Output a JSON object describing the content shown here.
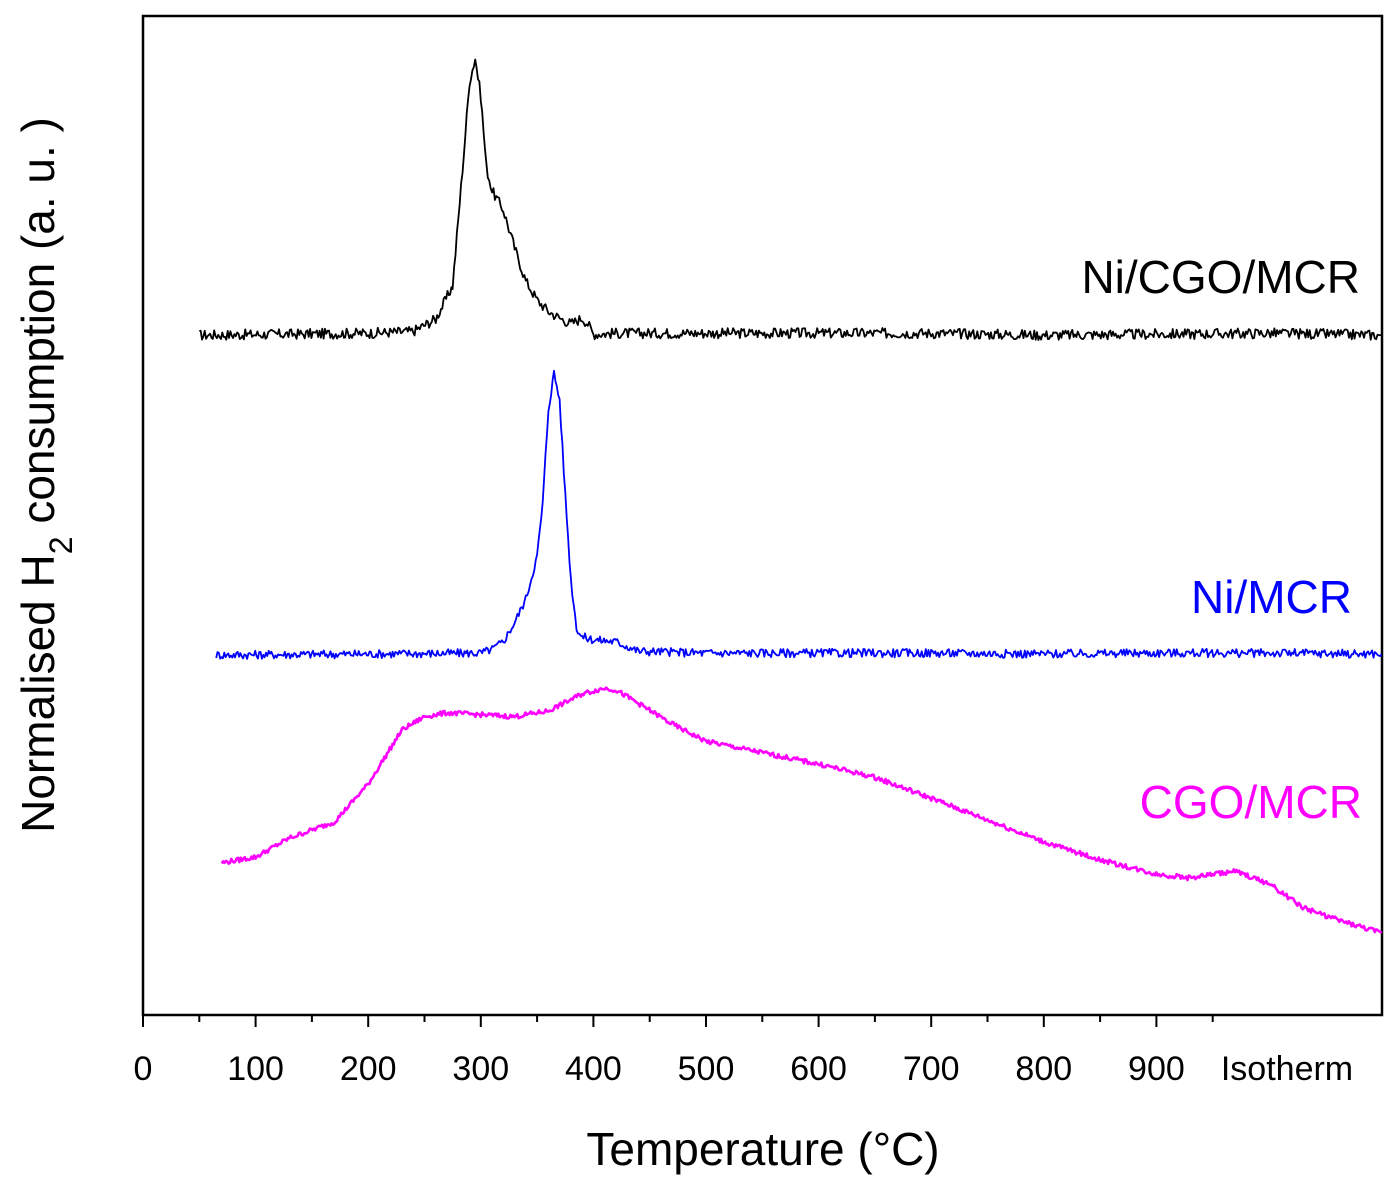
{
  "chart_data": {
    "type": "line",
    "title": "",
    "xlabel": "Temperature (°C)",
    "ylabel_main": "Normalised H",
    "ylabel_sub": "2",
    "ylabel_rest": " consumption (a. u. )",
    "xlim": [
      0,
      1100
    ],
    "ylim": [
      0,
      100
    ],
    "x_ticks": [
      {
        "value": 0,
        "label": "0"
      },
      {
        "value": 100,
        "label": "100"
      },
      {
        "value": 200,
        "label": "200"
      },
      {
        "value": 300,
        "label": "300"
      },
      {
        "value": 400,
        "label": "400"
      },
      {
        "value": 500,
        "label": "500"
      },
      {
        "value": 600,
        "label": "600"
      },
      {
        "value": 700,
        "label": "700"
      },
      {
        "value": 800,
        "label": "800"
      },
      {
        "value": 900,
        "label": "900"
      },
      {
        "value": 1000,
        "label": "Isotherm"
      }
    ],
    "series": [
      {
        "name": "Ni/CGO/MCR",
        "color": "#000000",
        "x": [
          50,
          200,
          240,
          260,
          275,
          285,
          290,
          295,
          300,
          305,
          310,
          320,
          330,
          340,
          350,
          360,
          370,
          380,
          390,
          395,
          400,
          420,
          500,
          600,
          700,
          800,
          900,
          1000,
          1100
        ],
        "y": [
          70.8,
          71.0,
          71.2,
          72.5,
          76.0,
          90.0,
          97.5,
          100.0,
          96.0,
          88.5,
          86.0,
          84.0,
          80.0,
          76.5,
          74.5,
          73.3,
          72.6,
          72.0,
          72.6,
          72.0,
          70.9,
          71.0,
          71.0,
          71.0,
          71.0,
          70.8,
          70.9,
          71.0,
          70.8
        ]
      },
      {
        "name": "Ni/MCR",
        "color": "#0000ff",
        "x": [
          65,
          200,
          300,
          310,
          320,
          330,
          340,
          350,
          355,
          360,
          365,
          370,
          375,
          380,
          385,
          390,
          400,
          420,
          440,
          500,
          600,
          700,
          800,
          900,
          1000,
          1100
        ],
        "y": [
          37.1,
          37.2,
          37.3,
          37.7,
          38.5,
          40.5,
          43.0,
          47.5,
          53.0,
          63.0,
          66.8,
          64.0,
          54.0,
          45.0,
          40.0,
          39.0,
          38.7,
          38.5,
          37.5,
          37.3,
          37.3,
          37.3,
          37.2,
          37.3,
          37.3,
          37.2
        ]
      },
      {
        "name": "CGO/MCR",
        "color": "#ff00ff",
        "x": [
          70,
          100,
          130,
          170,
          200,
          230,
          250,
          270,
          300,
          330,
          360,
          390,
          410,
          420,
          440,
          470,
          500,
          550,
          600,
          650,
          700,
          750,
          800,
          850,
          900,
          930,
          950,
          970,
          1000,
          1030,
          1060,
          1100
        ],
        "y": [
          15.2,
          15.8,
          17.8,
          19.5,
          23.5,
          29.2,
          30.6,
          31.0,
          30.8,
          30.6,
          31.2,
          33.0,
          33.6,
          33.4,
          32.0,
          29.8,
          28.0,
          26.8,
          25.6,
          24.2,
          22.0,
          19.7,
          17.4,
          15.5,
          14.0,
          13.6,
          14.0,
          14.3,
          13.0,
          10.5,
          9.2,
          7.8
        ]
      }
    ]
  }
}
